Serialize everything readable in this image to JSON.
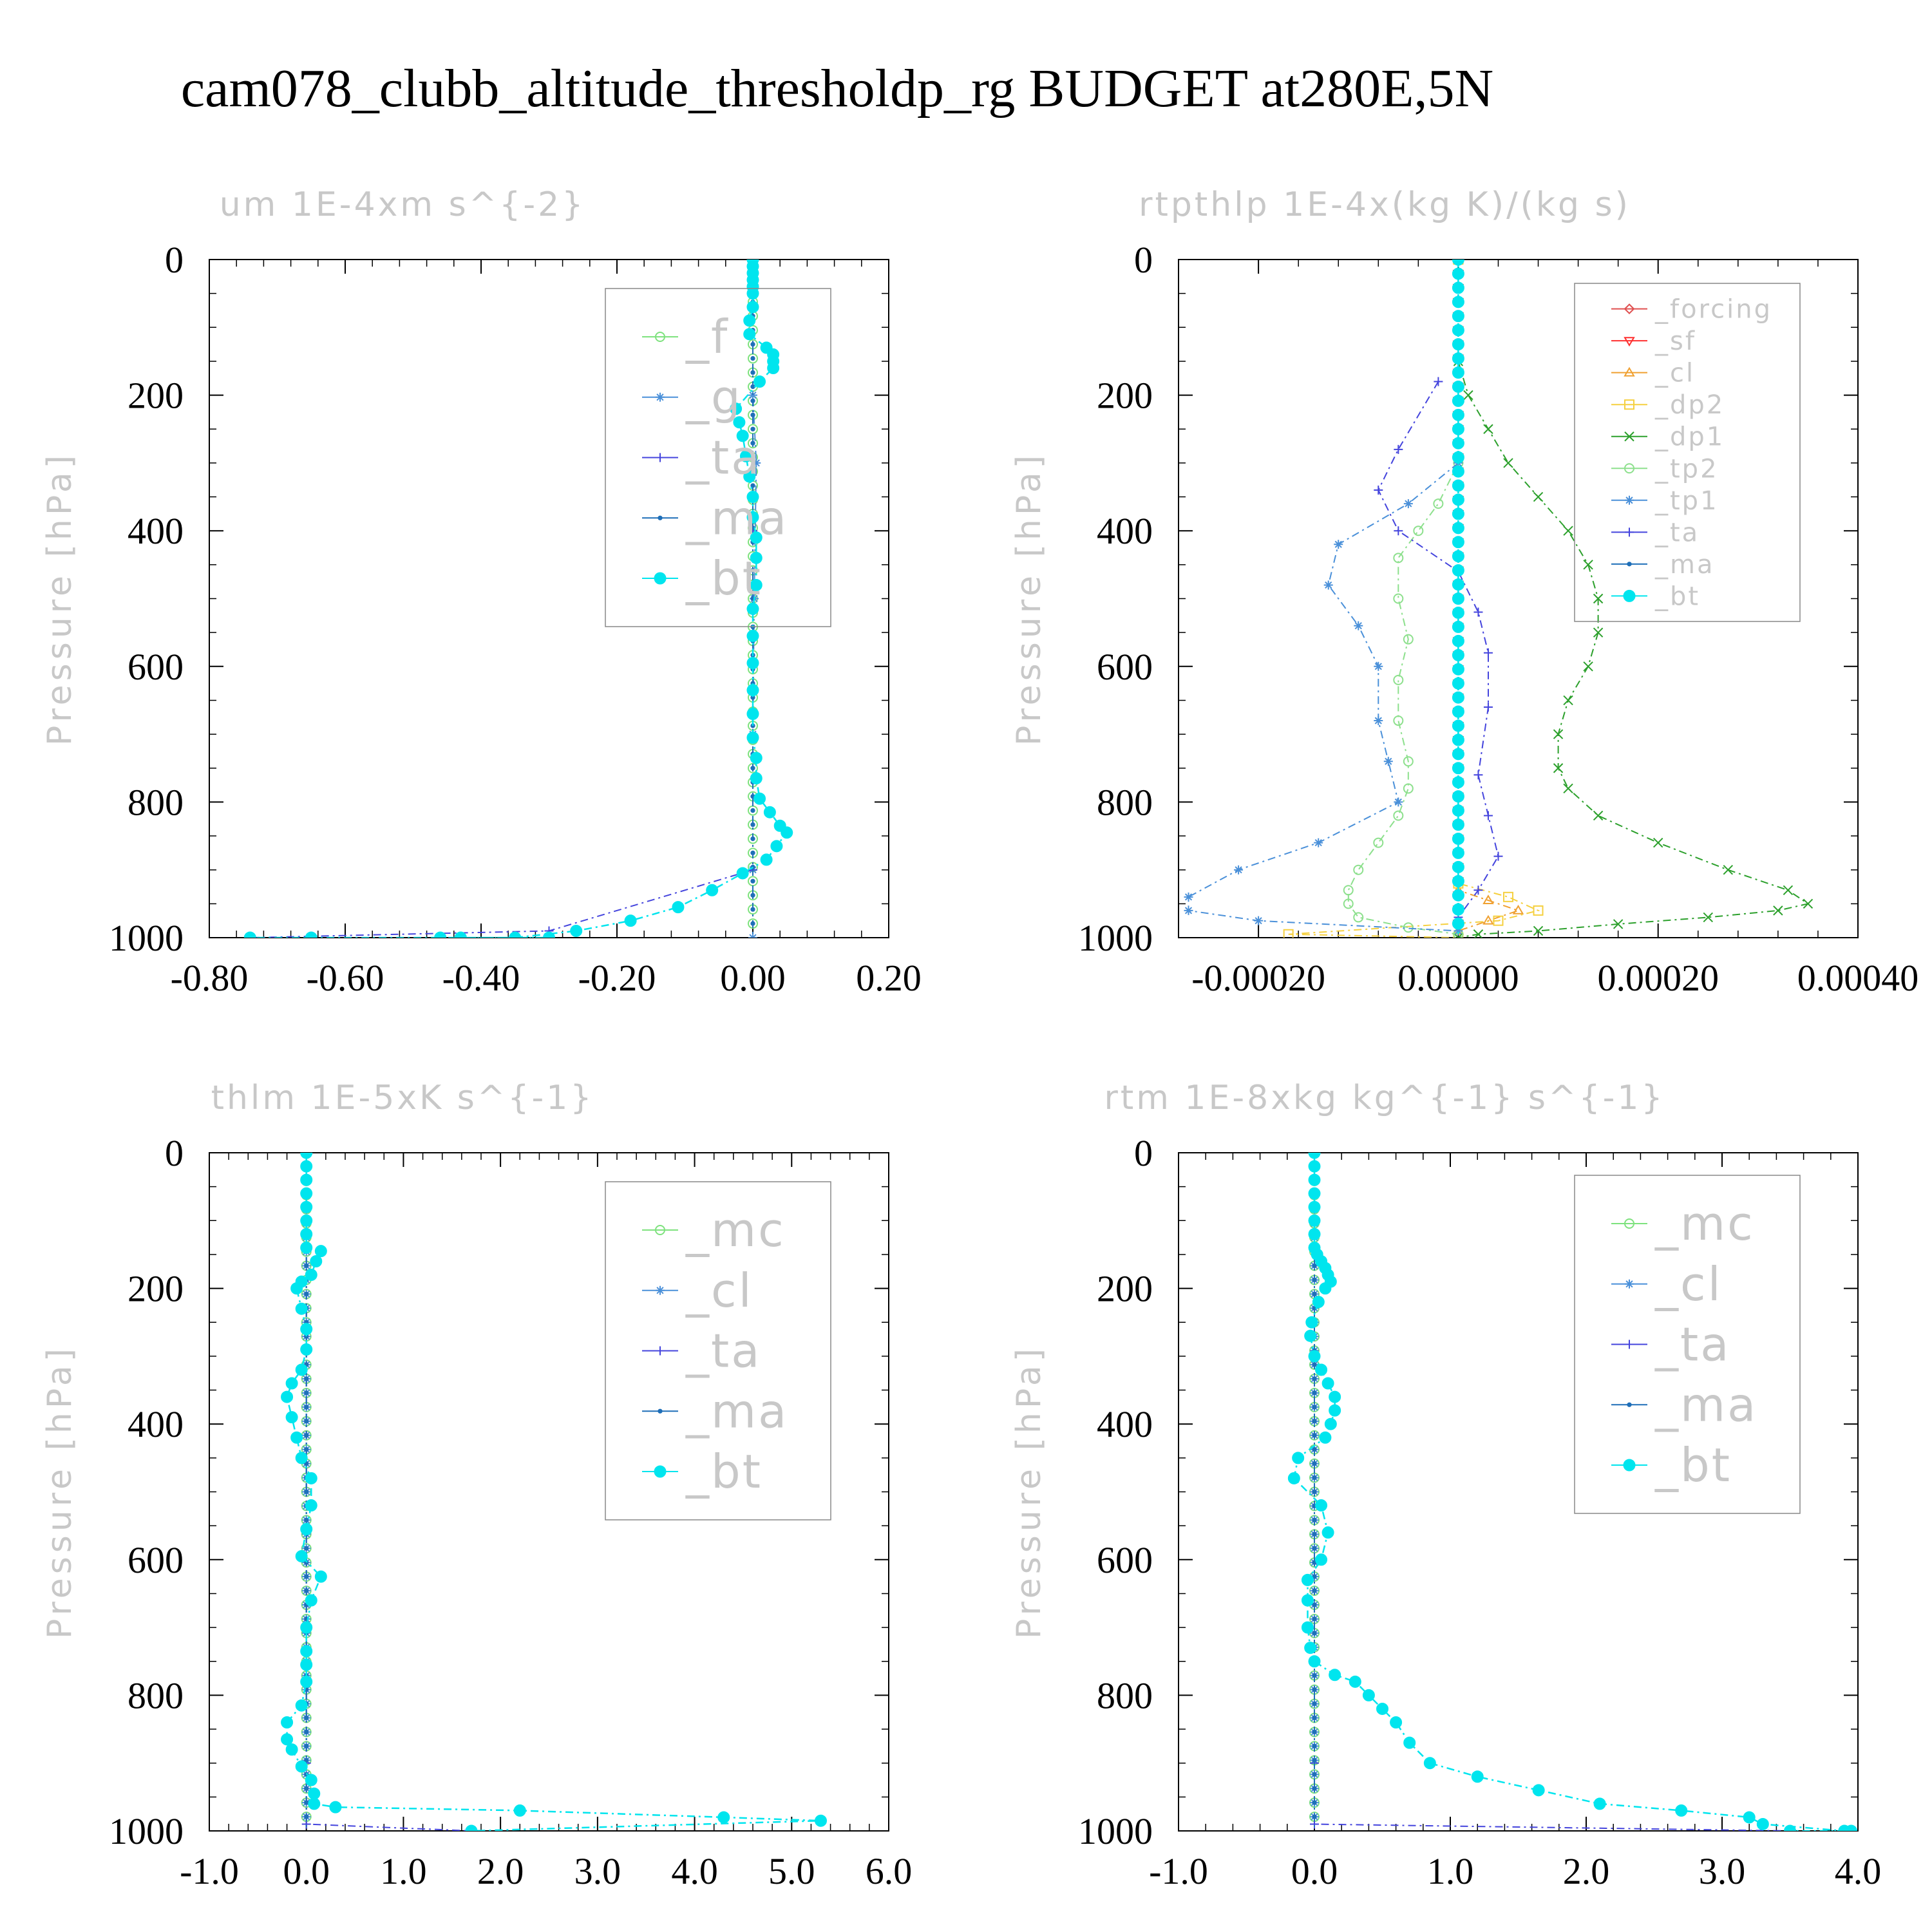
{
  "page": {
    "title": "cam078_clubb_altitude_thresholdp_rg  BUDGET at280E,5N"
  },
  "chart_data": [
    {
      "type": "line",
      "title": "um  1E-4xm s^{-2}",
      "ylabel": "Pressure [hPa]",
      "xlim": [
        -0.8,
        0.2
      ],
      "ylim": [
        1000,
        0
      ],
      "xticks": [
        "-0.80",
        "-0.60",
        "-0.40",
        "-0.20",
        "0.00",
        "0.20"
      ],
      "yticks": [
        "0",
        "200",
        "400",
        "600",
        "800",
        "1000"
      ],
      "legend_position": "upper-right",
      "series": [
        {
          "name": "_f",
          "color": "#7ee27e",
          "marker": "circle-open",
          "x": [
            0,
            0
          ],
          "y": [
            0,
            1000
          ]
        },
        {
          "name": "_g",
          "color": "#4a90d9",
          "marker": "star",
          "x": [
            0,
            0,
            0.005,
            0.002,
            0,
            0,
            0
          ],
          "y": [
            0,
            200,
            300,
            500,
            700,
            900,
            1000
          ]
        },
        {
          "name": "_ta",
          "color": "#4444dd",
          "marker": "plus",
          "x": [
            0,
            0,
            0,
            -0.3,
            -0.74
          ],
          "y": [
            0,
            400,
            900,
            990,
            1000
          ]
        },
        {
          "name": "_ma",
          "color": "#1f6fb8",
          "marker": "dot",
          "x": [
            0,
            0
          ],
          "y": [
            0,
            1000
          ]
        },
        {
          "name": "_bt",
          "color": "#00e5ee",
          "marker": "filled",
          "x": [
            0,
            0,
            0,
            0,
            0,
            0,
            0,
            -0.005,
            -0.005,
            0.02,
            0.03,
            0.03,
            0.03,
            0.01,
            -0.025,
            -0.02,
            -0.015,
            -0.01,
            -0.005,
            0,
            0,
            0.005,
            0.005,
            0.005,
            0,
            0,
            0,
            0,
            0,
            0,
            0.005,
            0.005,
            0.01,
            0.025,
            0.04,
            0.05,
            0.035,
            0.02,
            -0.015,
            -0.06,
            -0.11,
            -0.18,
            -0.26,
            -0.35,
            -0.43,
            -0.3,
            -0.46,
            -0.65,
            -0.74
          ],
          "y": [
            0,
            10,
            20,
            30,
            40,
            50,
            70,
            90,
            110,
            130,
            140,
            150,
            160,
            180,
            220,
            240,
            260,
            290,
            320,
            350,
            380,
            410,
            440,
            480,
            515,
            555,
            595,
            635,
            670,
            705,
            735,
            765,
            795,
            815,
            835,
            845,
            865,
            885,
            905,
            930,
            955,
            975,
            990,
            1000,
            1000,
            1000,
            1000,
            1000,
            1000
          ]
        }
      ]
    },
    {
      "type": "line",
      "title": "rtpthlp  1E-4x(kg K)/(kg s)",
      "ylabel": "Pressure [hPa]",
      "xlim": [
        -0.00028,
        0.0004
      ],
      "ylim": [
        1000,
        0
      ],
      "xticks": [
        "-0.00020",
        "0.00000",
        "0.00020",
        "0.00040"
      ],
      "yticks": [
        "0",
        "200",
        "400",
        "600",
        "800",
        "1000"
      ],
      "legend_position": "upper-right",
      "series": [
        {
          "name": "_forcing",
          "color": "#e05050",
          "marker": "diamond-open",
          "x": [
            0,
            0
          ],
          "y": [
            0,
            1000
          ]
        },
        {
          "name": "_sf",
          "color": "#ff3030",
          "marker": "triangle-down",
          "x": [
            0,
            0
          ],
          "y": [
            0,
            1000
          ]
        },
        {
          "name": "_cl",
          "color": "#f0a030",
          "marker": "triangle-up",
          "x": [
            0,
            0,
            3e-05,
            6e-05,
            3e-05,
            0
          ],
          "y": [
            0,
            930,
            945,
            960,
            975,
            990
          ]
        },
        {
          "name": "_dp2",
          "color": "#f5d040",
          "marker": "square-open",
          "x": [
            0,
            0,
            5e-05,
            8e-05,
            4e-05,
            -0.00017,
            0
          ],
          "y": [
            0,
            920,
            940,
            960,
            975,
            995,
            1000
          ]
        },
        {
          "name": "_dp1",
          "color": "#2ca02c",
          "marker": "x",
          "x": [
            0,
            1e-05,
            3e-05,
            5e-05,
            8e-05,
            0.00011,
            0.00013,
            0.00014,
            0.00014,
            0.00013,
            0.00011,
            0.0001,
            0.0001,
            0.00011,
            0.00014,
            0.0002,
            0.00027,
            0.00033,
            0.00035,
            0.00032,
            0.00025,
            0.00016,
            8e-05,
            2e-05,
            0
          ],
          "y": [
            150,
            200,
            250,
            300,
            350,
            400,
            450,
            500,
            550,
            600,
            650,
            700,
            750,
            780,
            820,
            860,
            900,
            930,
            950,
            960,
            970,
            980,
            990,
            995,
            1000
          ]
        },
        {
          "name": "_tp2",
          "color": "#8de08d",
          "marker": "circle-open",
          "x": [
            0,
            -2e-05,
            -4e-05,
            -6e-05,
            -6e-05,
            -5e-05,
            -6e-05,
            -6e-05,
            -5e-05,
            -5e-05,
            -6e-05,
            -8e-05,
            -0.0001,
            -0.00011,
            -0.00011,
            -0.0001,
            -5e-05,
            0
          ],
          "y": [
            300,
            360,
            400,
            440,
            500,
            560,
            620,
            680,
            740,
            780,
            820,
            860,
            900,
            930,
            950,
            970,
            985,
            995
          ]
        },
        {
          "name": "_tp1",
          "color": "#4a90d9",
          "marker": "star",
          "x": [
            0,
            -5e-05,
            -0.00012,
            -0.00013,
            -0.0001,
            -8e-05,
            -8e-05,
            -7e-05,
            -6e-05,
            -0.00014,
            -0.00022,
            -0.00027,
            -0.00027,
            -0.0002,
            0
          ],
          "y": [
            300,
            360,
            420,
            480,
            540,
            600,
            680,
            740,
            800,
            860,
            900,
            940,
            960,
            975,
            990
          ]
        },
        {
          "name": "_ta",
          "color": "#4444dd",
          "marker": "plus",
          "x": [
            -2e-05,
            -6e-05,
            -8e-05,
            -6e-05,
            0,
            2e-05,
            3e-05,
            3e-05,
            2e-05,
            3e-05,
            4e-05,
            2e-05,
            0
          ],
          "y": [
            180,
            280,
            340,
            400,
            460,
            520,
            580,
            660,
            760,
            820,
            880,
            930,
            970
          ]
        },
        {
          "name": "_ma",
          "color": "#1f6fb8",
          "marker": "dot",
          "x": [
            0,
            0
          ],
          "y": [
            0,
            1000
          ]
        },
        {
          "name": "_bt",
          "color": "#00e5ee",
          "marker": "filled",
          "x": [
            0,
            0
          ],
          "y": [
            0,
            1000
          ]
        }
      ]
    },
    {
      "type": "line",
      "title": "thlm  1E-5xK s^{-1}",
      "ylabel": "Pressure [hPa]",
      "xlim": [
        -1.0,
        6.0
      ],
      "ylim": [
        1000,
        0
      ],
      "xticks": [
        "-1.0",
        "0.0",
        "1.0",
        "2.0",
        "3.0",
        "4.0",
        "5.0",
        "6.0"
      ],
      "yticks": [
        "0",
        "200",
        "400",
        "600",
        "800",
        "1000"
      ],
      "legend_position": "upper-right",
      "series": [
        {
          "name": "_mc",
          "color": "#7ee27e",
          "marker": "circle-open",
          "x": [
            0,
            0
          ],
          "y": [
            0,
            1000
          ]
        },
        {
          "name": "_cl",
          "color": "#4a90d9",
          "marker": "star",
          "x": [
            0,
            0
          ],
          "y": [
            0,
            1000
          ]
        },
        {
          "name": "_ta",
          "color": "#4444dd",
          "marker": "plus",
          "x": [
            0,
            0,
            0,
            1.7
          ],
          "y": [
            0,
            900,
            990,
            1000
          ]
        },
        {
          "name": "_ma",
          "color": "#1f6fb8",
          "marker": "dot",
          "x": [
            0,
            0
          ],
          "y": [
            0,
            1000
          ]
        },
        {
          "name": "_bt",
          "color": "#00e5ee",
          "marker": "filled",
          "x": [
            0,
            0,
            0,
            0,
            0,
            0,
            0,
            0,
            0.15,
            0.1,
            0.05,
            -0.05,
            -0.1,
            -0.05,
            0,
            0,
            -0.05,
            -0.15,
            -0.2,
            -0.15,
            -0.1,
            -0.05,
            0.05,
            0.05,
            0,
            -0.05,
            0.15,
            0.05,
            0,
            0,
            0,
            0,
            -0.05,
            -0.2,
            -0.2,
            -0.15,
            -0.05,
            0.05,
            0.08,
            0.08,
            0.3,
            2.2,
            4.3,
            5.3,
            1.7
          ],
          "y": [
            0,
            20,
            40,
            60,
            80,
            100,
            120,
            140,
            145,
            160,
            180,
            190,
            200,
            230,
            260,
            290,
            320,
            340,
            360,
            390,
            420,
            450,
            480,
            520,
            555,
            595,
            625,
            660,
            700,
            735,
            755,
            780,
            815,
            840,
            865,
            880,
            905,
            925,
            945,
            960,
            965,
            970,
            980,
            985,
            1000
          ]
        }
      ]
    },
    {
      "type": "line",
      "title": "rtm  1E-8xkg kg^{-1} s^{-1}",
      "ylabel": "Pressure [hPa]",
      "xlim": [
        -1.0,
        4.0
      ],
      "ylim": [
        1000,
        0
      ],
      "xticks": [
        "-1.0",
        "0.0",
        "1.0",
        "2.0",
        "3.0",
        "4.0"
      ],
      "yticks": [
        "0",
        "200",
        "400",
        "600",
        "800",
        "1000"
      ],
      "legend_position": "upper-right",
      "series": [
        {
          "name": "_mc",
          "color": "#7ee27e",
          "marker": "circle-open",
          "x": [
            0,
            0
          ],
          "y": [
            0,
            1000
          ]
        },
        {
          "name": "_cl",
          "color": "#4a90d9",
          "marker": "star",
          "x": [
            0,
            0
          ],
          "y": [
            0,
            1000
          ]
        },
        {
          "name": "_ta",
          "color": "#4444dd",
          "marker": "plus",
          "x": [
            0,
            0,
            0,
            3.5
          ],
          "y": [
            0,
            900,
            990,
            1000
          ]
        },
        {
          "name": "_ma",
          "color": "#1f6fb8",
          "marker": "dot",
          "x": [
            0,
            0
          ],
          "y": [
            0,
            1000
          ]
        },
        {
          "name": "_bt",
          "color": "#00e5ee",
          "marker": "filled",
          "x": [
            0,
            0,
            0,
            0,
            0,
            0,
            0,
            0,
            0.02,
            0.05,
            0.08,
            0.1,
            0.12,
            0.08,
            0.03,
            -0.02,
            -0.03,
            0,
            0.05,
            0.1,
            0.15,
            0.15,
            0.12,
            0.08,
            -0.12,
            -0.15,
            0.05,
            0.1,
            0.05,
            -0.05,
            -0.05,
            -0.05,
            -0.03,
            0,
            0.15,
            0.3,
            0.4,
            0.5,
            0.6,
            0.7,
            0.85,
            1.2,
            1.65,
            2.1,
            2.7,
            3.2,
            3.3,
            3.9,
            3.95,
            3.5
          ],
          "y": [
            0,
            20,
            40,
            60,
            80,
            100,
            120,
            140,
            150,
            160,
            170,
            180,
            190,
            200,
            220,
            250,
            270,
            300,
            320,
            340,
            360,
            380,
            400,
            420,
            450,
            480,
            520,
            560,
            600,
            630,
            660,
            700,
            730,
            750,
            770,
            780,
            800,
            820,
            840,
            870,
            900,
            920,
            940,
            960,
            970,
            980,
            990,
            1000,
            1000,
            1000
          ]
        }
      ]
    }
  ]
}
